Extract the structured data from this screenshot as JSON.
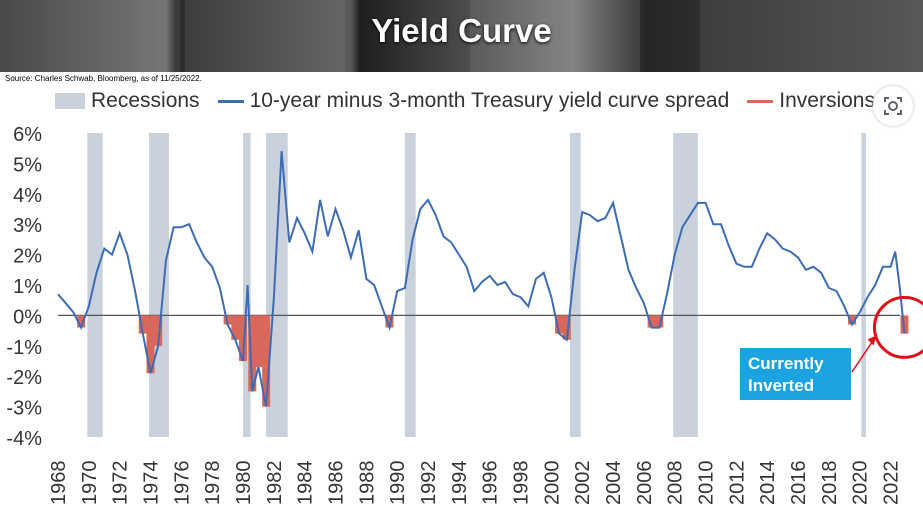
{
  "header": {
    "title": "Yield Curve"
  },
  "source_note": "Source: Charles Schwab, Bloomberg, as of 11/25/2022.",
  "legend": {
    "recessions": "Recessions",
    "spread": "10-year minus 3-month Treasury yield curve spread",
    "inversions": "Inversions"
  },
  "callout": {
    "line1": "Currently",
    "line2": "Inverted"
  },
  "colors": {
    "spread": "#3d6cb4",
    "inversion": "#d9675a",
    "recession": "#c9d2dc",
    "callout": "#1aa3e0",
    "circle": "#e0101a"
  },
  "icons": {
    "lens": "google-lens-icon"
  },
  "chart_data": {
    "type": "line",
    "title": "",
    "xlabel": "",
    "ylabel": "",
    "xlim": [
      1968,
      2023
    ],
    "ylim": [
      -4,
      6
    ],
    "y_ticks": [
      "6%",
      "5%",
      "4%",
      "3%",
      "2%",
      "1%",
      "0%",
      "-1%",
      "-2%",
      "-3%",
      "-4%"
    ],
    "x_ticks": [
      "1968",
      "1970",
      "1972",
      "1974",
      "1976",
      "1978",
      "1980",
      "1982",
      "1984",
      "1986",
      "1988",
      "1990",
      "1992",
      "1994",
      "1996",
      "1998",
      "2000",
      "2002",
      "2004",
      "2006",
      "2008",
      "2010",
      "2012",
      "2014",
      "2016",
      "2018",
      "2020",
      "2022"
    ],
    "recessions": [
      [
        1969.9,
        1970.9
      ],
      [
        1973.9,
        1975.2
      ],
      [
        1980.0,
        1980.5
      ],
      [
        1981.5,
        1982.9
      ],
      [
        1990.5,
        1991.2
      ],
      [
        2001.2,
        2001.9
      ],
      [
        2007.9,
        2009.5
      ],
      [
        2020.1,
        2020.4
      ]
    ],
    "series": [
      {
        "name": "10-year minus 3-month Treasury yield curve spread",
        "x": [
          1968.0,
          1968.5,
          1969.0,
          1969.5,
          1970.0,
          1970.5,
          1971.0,
          1971.5,
          1972.0,
          1972.5,
          1973.0,
          1973.5,
          1974.0,
          1974.5,
          1975.0,
          1975.5,
          1976.0,
          1976.5,
          1977.0,
          1977.5,
          1978.0,
          1978.5,
          1979.0,
          1979.5,
          1980.0,
          1980.3,
          1980.6,
          1981.0,
          1981.5,
          1982.0,
          1982.5,
          1983.0,
          1983.5,
          1984.0,
          1984.5,
          1985.0,
          1985.5,
          1986.0,
          1986.5,
          1987.0,
          1987.5,
          1988.0,
          1988.5,
          1989.0,
          1989.5,
          1990.0,
          1990.5,
          1991.0,
          1991.5,
          1992.0,
          1992.5,
          1993.0,
          1993.5,
          1994.0,
          1994.5,
          1995.0,
          1995.5,
          1996.0,
          1996.5,
          1997.0,
          1997.5,
          1998.0,
          1998.5,
          1999.0,
          1999.5,
          2000.0,
          2000.5,
          2001.0,
          2001.5,
          2002.0,
          2002.5,
          2003.0,
          2003.5,
          2004.0,
          2004.5,
          2005.0,
          2005.5,
          2006.0,
          2006.5,
          2007.0,
          2007.5,
          2008.0,
          2008.5,
          2009.0,
          2009.5,
          2010.0,
          2010.5,
          2011.0,
          2011.5,
          2012.0,
          2012.5,
          2013.0,
          2013.5,
          2014.0,
          2014.5,
          2015.0,
          2015.5,
          2016.0,
          2016.5,
          2017.0,
          2017.5,
          2018.0,
          2018.5,
          2019.0,
          2019.5,
          2020.0,
          2020.5,
          2021.0,
          2021.5,
          2022.0,
          2022.3,
          2022.6,
          2022.9
        ],
        "y": [
          0.7,
          0.4,
          0.1,
          -0.4,
          0.3,
          1.4,
          2.2,
          2.0,
          2.7,
          2.0,
          0.8,
          -0.6,
          -1.9,
          -1.0,
          1.8,
          2.9,
          2.9,
          3.0,
          2.4,
          1.9,
          1.6,
          0.9,
          -0.3,
          -0.8,
          -1.5,
          1.0,
          -2.5,
          -1.7,
          -3.0,
          0.6,
          5.4,
          2.4,
          3.2,
          2.7,
          2.1,
          3.8,
          2.6,
          3.5,
          2.8,
          1.9,
          2.8,
          1.2,
          1.0,
          0.3,
          -0.4,
          0.8,
          0.9,
          2.5,
          3.5,
          3.8,
          3.3,
          2.6,
          2.4,
          2.0,
          1.6,
          0.8,
          1.1,
          1.3,
          1.0,
          1.1,
          0.7,
          0.6,
          0.3,
          1.2,
          1.4,
          0.6,
          -0.6,
          -0.8,
          1.5,
          3.4,
          3.3,
          3.1,
          3.2,
          3.7,
          2.6,
          1.5,
          0.9,
          0.4,
          -0.4,
          -0.4,
          0.7,
          2.0,
          2.9,
          3.3,
          3.7,
          3.7,
          3.0,
          3.0,
          2.3,
          1.7,
          1.6,
          1.6,
          2.2,
          2.7,
          2.5,
          2.2,
          2.1,
          1.9,
          1.5,
          1.6,
          1.4,
          0.9,
          0.8,
          0.3,
          -0.3,
          0.1,
          0.6,
          1.0,
          1.6,
          1.6,
          2.1,
          0.9,
          -0.6
        ]
      }
    ]
  }
}
